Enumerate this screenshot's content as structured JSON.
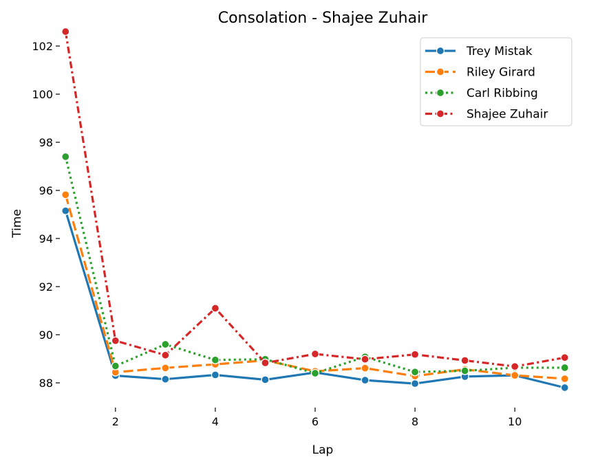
{
  "chart_data": {
    "type": "line",
    "title": "Consolation - Shajee Zuhair",
    "xlabel": "Lap",
    "ylabel": "Time",
    "xlim": [
      0.9,
      11.1
    ],
    "ylim": [
      87.0,
      102.6
    ],
    "x_ticks": [
      2,
      4,
      6,
      8,
      10
    ],
    "y_ticks": [
      88,
      90,
      92,
      94,
      96,
      98,
      100,
      102
    ],
    "grid": false,
    "legend_position": "top-right",
    "x": [
      1,
      2,
      3,
      4,
      5,
      6,
      7,
      8,
      9,
      10,
      11
    ],
    "series": [
      {
        "name": "Trey Mistak",
        "color": "#1f77b4",
        "dash": "solid",
        "values": [
          95.15,
          88.3,
          88.15,
          88.33,
          88.13,
          88.43,
          88.11,
          87.97,
          88.26,
          88.31,
          87.8
        ]
      },
      {
        "name": "Riley Girard",
        "color": "#ff7f0e",
        "dash": "dashed",
        "values": [
          95.82,
          88.44,
          88.62,
          88.77,
          88.93,
          88.48,
          88.61,
          88.28,
          88.56,
          88.31,
          88.17
        ]
      },
      {
        "name": "Carl Ribbing",
        "color": "#2ca02c",
        "dash": "dotted",
        "values": [
          97.4,
          88.7,
          89.6,
          88.95,
          88.98,
          88.4,
          89.08,
          88.45,
          88.5,
          88.63,
          88.63
        ]
      },
      {
        "name": "Shajee Zuhair",
        "color": "#d62728",
        "dash": "dashdot",
        "values": [
          102.6,
          89.75,
          89.15,
          91.1,
          88.83,
          89.2,
          88.98,
          89.18,
          88.93,
          88.68,
          89.05
        ]
      }
    ]
  }
}
